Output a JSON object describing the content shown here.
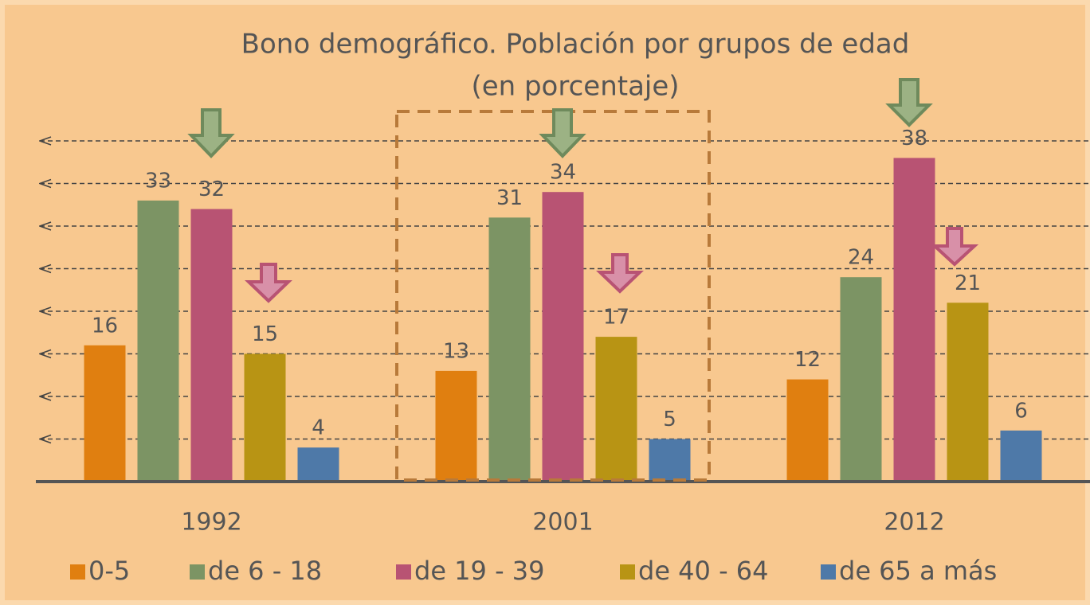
{
  "chart_data": {
    "type": "bar",
    "title": "Bono demográfico. Población por grupos de edad",
    "subtitle": "(en porcentaje)",
    "categories": [
      "1992",
      "2001",
      "2012"
    ],
    "series": [
      {
        "name": "0-5",
        "color": "#e07f10",
        "values": [
          16,
          13,
          12
        ]
      },
      {
        "name": "de 6 - 18",
        "color": "#7c9464",
        "values": [
          33,
          31,
          24
        ]
      },
      {
        "name": "de 19 - 39",
        "color": "#b85373",
        "values": [
          32,
          34,
          38
        ]
      },
      {
        "name": "de 40 - 64",
        "color": "#b89414",
        "values": [
          15,
          17,
          21
        ]
      },
      {
        "name": "de 65 a más",
        "color": "#4e79a8",
        "values": [
          4,
          5,
          6
        ]
      }
    ],
    "ylim": [
      0,
      40
    ],
    "yticks": [
      5,
      10,
      15,
      20,
      25,
      30,
      35,
      40
    ],
    "grid": true
  }
}
